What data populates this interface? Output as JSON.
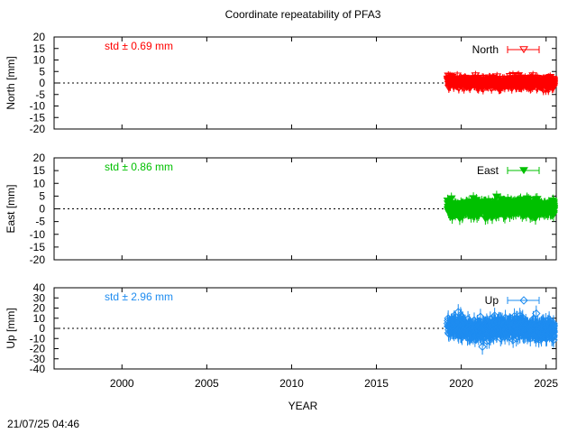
{
  "chart_data": {
    "title": "Coordinate repeatability of PFA3",
    "xlabel": "YEAR",
    "timestamp": "21/07/25 04:46",
    "type": "scatter",
    "xlim": [
      1996.0,
      2025.6
    ],
    "xticks": [
      2000,
      2005,
      2010,
      2015,
      2020,
      2025
    ],
    "panels": [
      {
        "name": "North",
        "ylabel": "North [mm]",
        "ylim": [
          -20,
          20
        ],
        "yticks": [
          -20,
          -15,
          -10,
          -5,
          0,
          5,
          10,
          15,
          20
        ],
        "std_label": "std ± 0.69 mm",
        "color": "#ff0000",
        "marker": "triangle-down-open",
        "data_start": 2019.2,
        "data_end": 2025.6,
        "std": 0.69,
        "x": [
          2019.3,
          2019.8,
          2020.3,
          2020.8,
          2021.3,
          2021.8,
          2022.3,
          2022.8,
          2023.3,
          2023.8,
          2024.3,
          2024.8,
          2025.3
        ],
        "y": [
          0.2,
          0.5,
          -0.3,
          0.4,
          -0.2,
          0.3,
          0.1,
          -0.4,
          0.6,
          -0.1,
          0.2,
          -0.3,
          0.1
        ]
      },
      {
        "name": "East",
        "ylabel": "East [mm]",
        "ylim": [
          -20,
          20
        ],
        "yticks": [
          -20,
          -15,
          -10,
          -5,
          0,
          5,
          10,
          15,
          20
        ],
        "std_label": "std ± 0.86 mm",
        "color": "#00c000",
        "marker": "triangle-down-filled",
        "data_start": 2019.2,
        "data_end": 2025.6,
        "std": 0.86,
        "x": [
          2019.3,
          2019.8,
          2020.3,
          2020.8,
          2021.3,
          2021.8,
          2022.3,
          2022.8,
          2023.3,
          2023.8,
          2024.3,
          2024.8,
          2025.3
        ],
        "y": [
          0.1,
          -0.6,
          0.3,
          -0.5,
          0.4,
          -0.2,
          0.5,
          0.2,
          0.6,
          0.3,
          0.5,
          0.4,
          0.2
        ]
      },
      {
        "name": "Up",
        "ylabel": "Up [mm]",
        "ylim": [
          -40,
          40
        ],
        "yticks": [
          -40,
          -30,
          -20,
          -10,
          0,
          10,
          20,
          30,
          40
        ],
        "std_label": "std ± 2.96 mm",
        "color": "#1e8cf0",
        "marker": "diamond-open",
        "data_start": 2019.2,
        "data_end": 2025.6,
        "std": 2.96,
        "x": [
          2019.3,
          2019.8,
          2020.3,
          2020.8,
          2021.3,
          2021.8,
          2022.3,
          2022.8,
          2023.3,
          2023.8,
          2024.3,
          2024.8,
          2025.3
        ],
        "y": [
          1.5,
          0.5,
          -0.5,
          -1.5,
          -1.0,
          -0.5,
          0.0,
          1.0,
          1.5,
          0.5,
          -1.0,
          -1.5,
          -1.0
        ]
      }
    ]
  }
}
